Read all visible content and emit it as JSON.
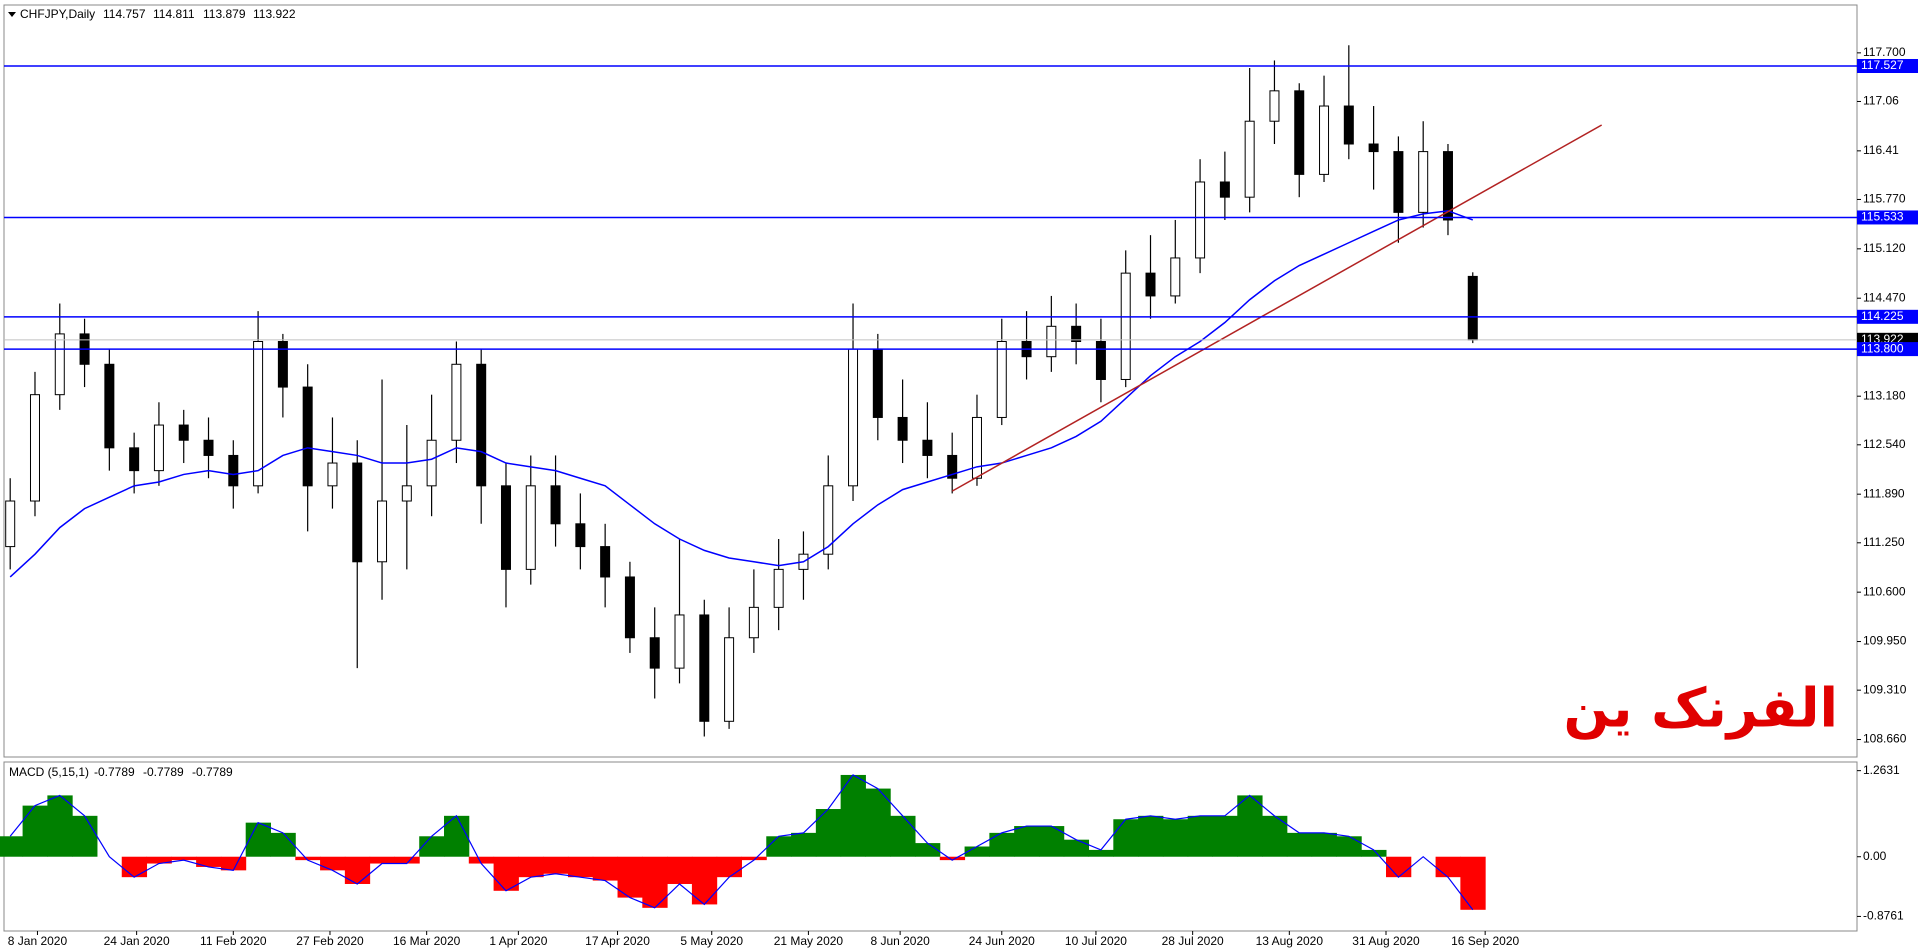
{
  "chart_data": {
    "type": "candlestick",
    "symbol": "CHFJPY,Daily",
    "candles": [
      [
        111.2,
        112.1,
        110.9,
        111.8
      ],
      [
        111.8,
        113.5,
        111.6,
        113.2
      ],
      [
        113.2,
        114.4,
        113.0,
        114.0
      ],
      [
        114.0,
        114.2,
        113.3,
        113.6
      ],
      [
        113.6,
        113.8,
        112.2,
        112.5
      ],
      [
        112.5,
        112.7,
        111.9,
        112.2
      ],
      [
        112.2,
        113.1,
        112.0,
        112.8
      ],
      [
        112.8,
        113.0,
        112.3,
        112.6
      ],
      [
        112.6,
        112.9,
        112.1,
        112.4
      ],
      [
        112.4,
        112.6,
        111.7,
        112.0
      ],
      [
        112.0,
        114.3,
        111.9,
        113.9
      ],
      [
        113.9,
        114.0,
        112.9,
        113.3
      ],
      [
        113.3,
        113.6,
        111.4,
        112.0
      ],
      [
        112.0,
        112.9,
        111.7,
        112.3
      ],
      [
        112.3,
        112.6,
        109.6,
        111.0
      ],
      [
        111.0,
        113.4,
        110.5,
        111.8
      ],
      [
        111.8,
        112.8,
        110.9,
        112.0
      ],
      [
        112.0,
        113.2,
        111.6,
        112.6
      ],
      [
        112.6,
        113.9,
        112.3,
        113.6
      ],
      [
        113.6,
        113.8,
        111.5,
        112.0
      ],
      [
        112.0,
        112.3,
        110.4,
        110.9
      ],
      [
        110.9,
        112.4,
        110.7,
        112.0
      ],
      [
        112.0,
        112.4,
        111.2,
        111.5
      ],
      [
        111.5,
        111.9,
        110.9,
        111.2
      ],
      [
        111.2,
        111.5,
        110.4,
        110.8
      ],
      [
        110.8,
        111.0,
        109.8,
        110.0
      ],
      [
        110.0,
        110.4,
        109.2,
        109.6
      ],
      [
        109.6,
        111.3,
        109.4,
        110.3
      ],
      [
        110.3,
        110.5,
        108.7,
        108.9
      ],
      [
        108.9,
        110.4,
        108.8,
        110.0
      ],
      [
        110.0,
        110.9,
        109.8,
        110.4
      ],
      [
        110.4,
        111.3,
        110.1,
        110.9
      ],
      [
        110.9,
        111.4,
        110.5,
        111.1
      ],
      [
        111.1,
        112.4,
        110.9,
        112.0
      ],
      [
        112.0,
        114.4,
        111.8,
        113.8
      ],
      [
        113.8,
        114.0,
        112.6,
        112.9
      ],
      [
        112.9,
        113.4,
        112.3,
        112.6
      ],
      [
        112.6,
        113.1,
        112.1,
        112.4
      ],
      [
        112.4,
        112.7,
        111.9,
        112.1
      ],
      [
        112.1,
        113.2,
        112.0,
        112.9
      ],
      [
        112.9,
        114.2,
        112.8,
        113.9
      ],
      [
        113.9,
        114.3,
        113.4,
        113.7
      ],
      [
        113.7,
        114.5,
        113.5,
        114.1
      ],
      [
        114.1,
        114.4,
        113.6,
        113.9
      ],
      [
        113.9,
        114.2,
        113.1,
        113.4
      ],
      [
        113.4,
        115.1,
        113.3,
        114.8
      ],
      [
        114.8,
        115.3,
        114.2,
        114.5
      ],
      [
        114.5,
        115.5,
        114.4,
        115.0
      ],
      [
        115.0,
        116.3,
        114.8,
        116.0
      ],
      [
        116.0,
        116.4,
        115.5,
        115.8
      ],
      [
        115.8,
        117.5,
        115.6,
        116.8
      ],
      [
        116.8,
        117.6,
        116.5,
        117.2
      ],
      [
        117.2,
        117.3,
        115.8,
        116.1
      ],
      [
        116.1,
        117.4,
        116.0,
        117.0
      ],
      [
        117.0,
        117.8,
        116.3,
        116.5
      ],
      [
        116.5,
        117.0,
        115.9,
        116.4
      ],
      [
        116.4,
        116.6,
        115.2,
        115.6
      ],
      [
        115.6,
        116.8,
        115.4,
        116.4
      ],
      [
        116.4,
        116.5,
        115.3,
        115.5
      ],
      [
        114.757,
        114.811,
        113.879,
        113.922
      ]
    ],
    "xlim": [
      -0.25,
      74.5
    ],
    "xticks": [
      {
        "value": 1.1,
        "label": "8 Jan 2020"
      },
      {
        "value": 5.1,
        "label": "24 Jan 2020"
      },
      {
        "value": 9.0,
        "label": "11 Feb 2020"
      },
      {
        "value": 12.9,
        "label": "27 Feb 2020"
      },
      {
        "value": 16.8,
        "label": "16 Mar 2020"
      },
      {
        "value": 20.5,
        "label": "1 Apr 2020"
      },
      {
        "value": 24.5,
        "label": "17 Apr 2020"
      },
      {
        "value": 28.3,
        "label": "5 May 2020"
      },
      {
        "value": 32.2,
        "label": "21 May 2020"
      },
      {
        "value": 35.9,
        "label": "8 Jun 2020"
      },
      {
        "value": 40.0,
        "label": "24 Jun 2020"
      },
      {
        "value": 43.8,
        "label": "10 Jul 2020"
      },
      {
        "value": 47.7,
        "label": "28 Jul 2020"
      },
      {
        "value": 51.6,
        "label": "13 Aug 2020"
      },
      {
        "value": 55.5,
        "label": "31 Aug 2020"
      },
      {
        "value": 59.5,
        "label": "16 Sep 2020"
      }
    ],
    "ylim": [
      108.43,
      118.33
    ],
    "yticks": [
      {
        "value": 117.7,
        "label": "117.700"
      },
      117.06,
      116.41,
      {
        "value": 115.77,
        "label": "115.770"
      },
      {
        "value": 115.12,
        "label": "115.120"
      },
      {
        "value": 114.47,
        "label": "114.470"
      },
      {
        "value": 113.18,
        "label": "113.180"
      },
      {
        "value": 112.54,
        "label": "112.540"
      },
      {
        "value": 111.89,
        "label": "111.890"
      },
      {
        "value": 111.25,
        "label": "111.250"
      },
      {
        "value": 110.6,
        "label": "110.600"
      },
      {
        "value": 109.95,
        "label": "109.950"
      },
      {
        "value": 109.31,
        "label": "109.310"
      },
      {
        "value": 108.66,
        "label": "108.660"
      }
    ],
    "up_color": "#ffffff",
    "down_color": "#000000",
    "moving_average": {
      "color": "#0000ff",
      "values": [
        110.8,
        111.1,
        111.45,
        111.7,
        111.85,
        112.0,
        112.05,
        112.15,
        112.2,
        112.15,
        112.2,
        112.4,
        112.5,
        112.45,
        112.4,
        112.3,
        112.3,
        112.35,
        112.5,
        112.45,
        112.3,
        112.25,
        112.2,
        112.1,
        112.0,
        111.75,
        111.5,
        111.3,
        111.15,
        111.05,
        111.0,
        110.95,
        111.0,
        111.2,
        111.5,
        111.75,
        111.95,
        112.05,
        112.15,
        112.25,
        112.3,
        112.4,
        112.5,
        112.65,
        112.85,
        113.15,
        113.45,
        113.7,
        113.9,
        114.15,
        114.45,
        114.7,
        114.9,
        115.05,
        115.2,
        115.35,
        115.5,
        115.58,
        115.62,
        115.5
      ]
    },
    "trendline": {
      "color": "#b22222",
      "x": [
        38,
        64.2
      ],
      "y": [
        111.93,
        116.75
      ]
    },
    "levels": {
      "color": "#0000ff",
      "values": [
        117.527,
        115.533,
        114.225,
        {
          "value": 113.8,
          "label": "113.800"
        }
      ]
    },
    "annotation": "الفرنک ین",
    "annotation_color": "#e00000",
    "macd": {
      "title": "MACD (5,15,1)",
      "up_color": "#008000",
      "down_color": "#ff0000",
      "line_color": "#0000ff",
      "ylim": [
        -1.09,
        1.39
      ],
      "yticks": [
        1.2631,
        {
          "value": 0,
          "label": "0.00"
        },
        -0.8761
      ],
      "values": [
        0.3,
        0.75,
        0.9,
        0.6,
        0.0,
        -0.3,
        -0.1,
        -0.05,
        -0.15,
        -0.2,
        0.5,
        0.35,
        -0.05,
        -0.2,
        -0.4,
        -0.1,
        -0.1,
        0.3,
        0.6,
        -0.1,
        -0.5,
        -0.3,
        -0.25,
        -0.3,
        -0.35,
        -0.6,
        -0.75,
        -0.4,
        -0.7,
        -0.3,
        -0.05,
        0.3,
        0.35,
        0.7,
        1.2,
        1.0,
        0.6,
        0.2,
        -0.05,
        0.15,
        0.35,
        0.45,
        0.45,
        0.25,
        0.1,
        0.55,
        0.6,
        0.55,
        0.6,
        0.6,
        0.9,
        0.6,
        0.35,
        0.35,
        0.3,
        0.1,
        -0.3,
        0.0,
        -0.3,
        -0.7789
      ]
    }
  }
}
